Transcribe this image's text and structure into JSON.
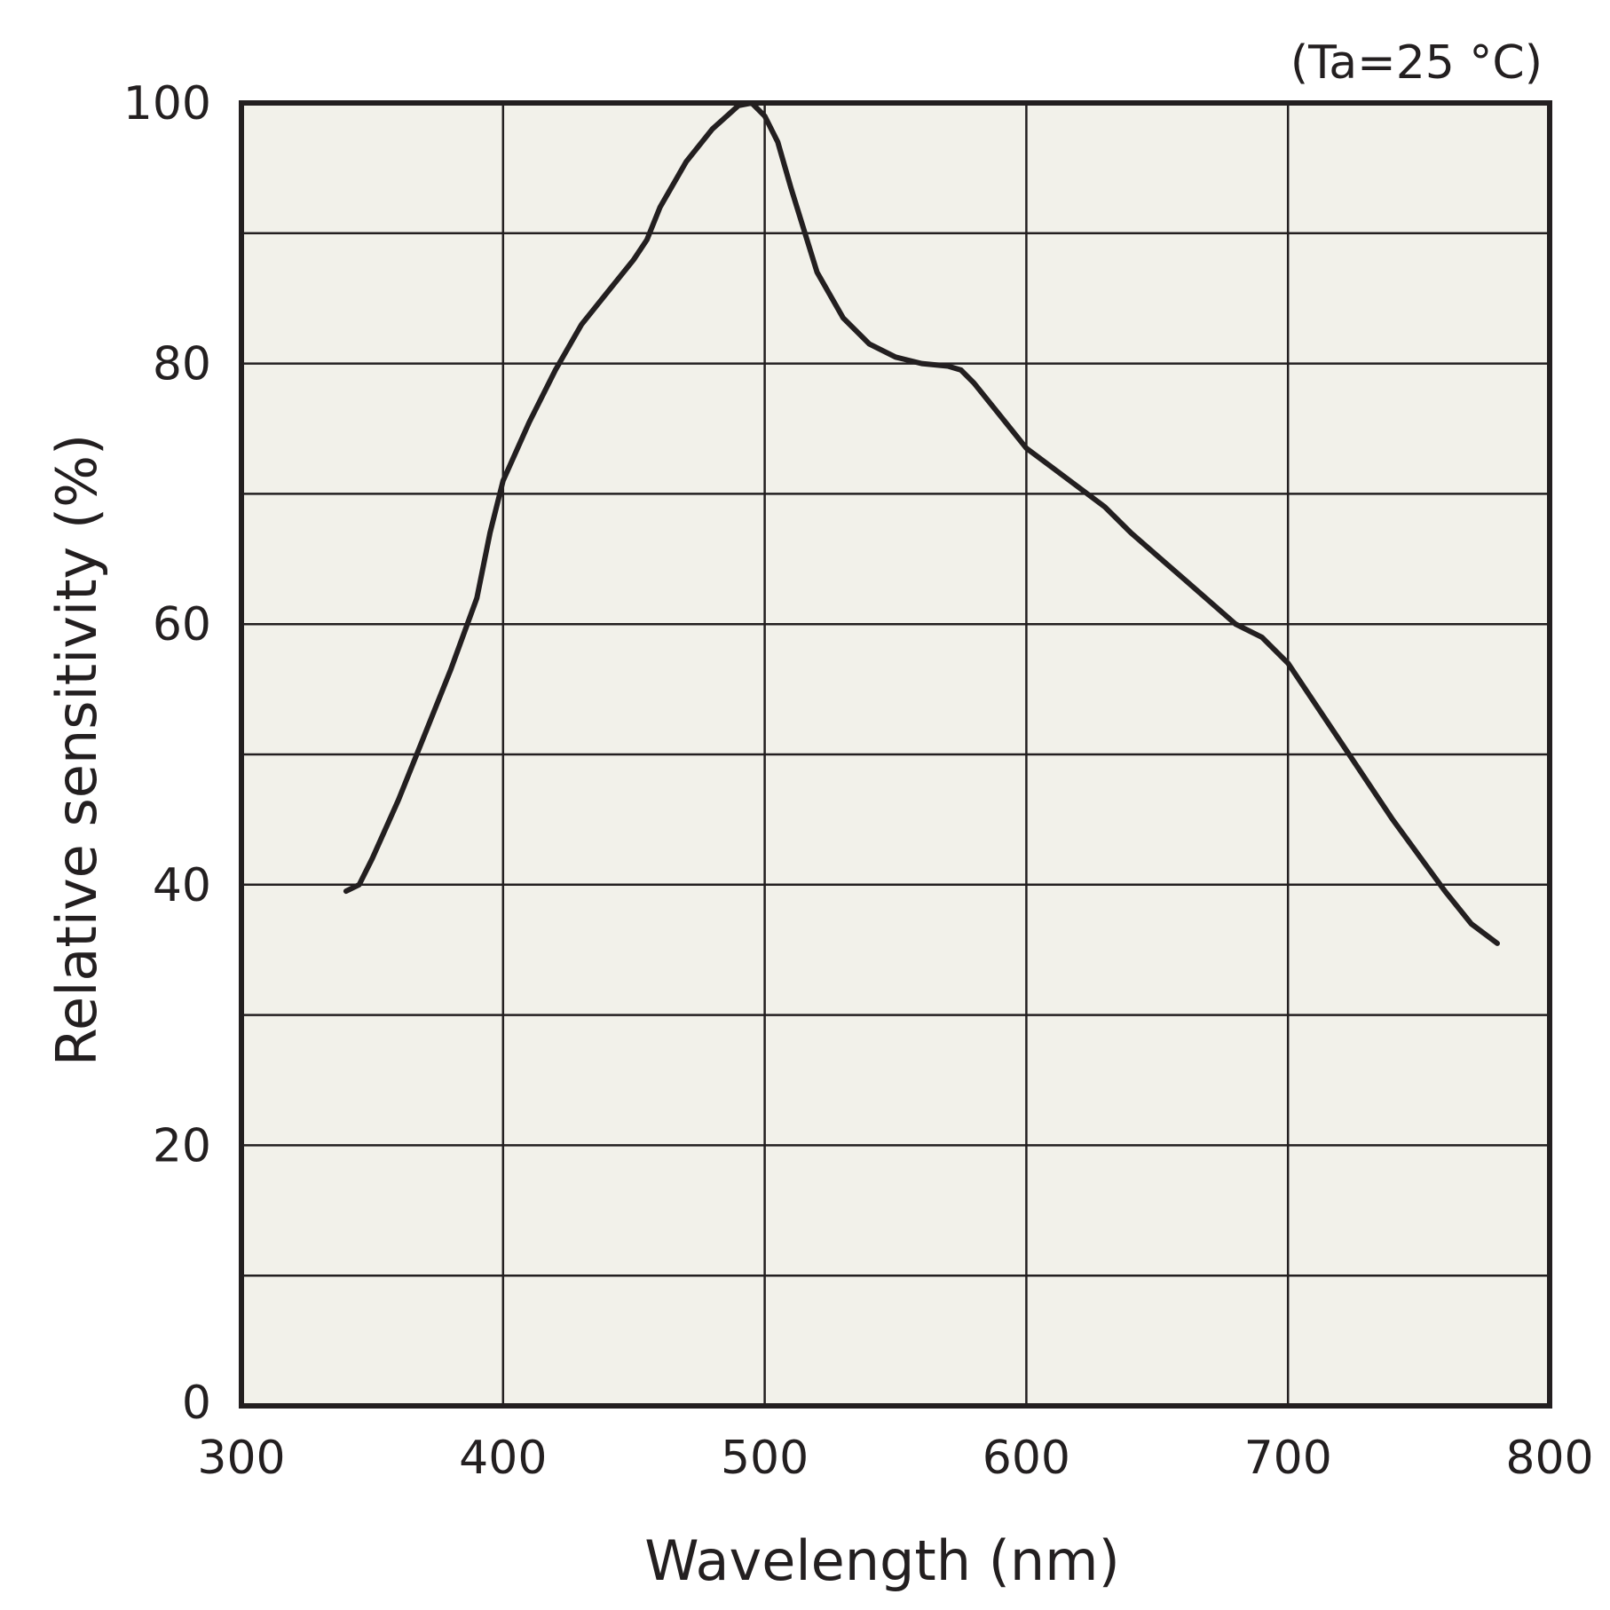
{
  "chart_data": {
    "type": "line",
    "title": "",
    "annotation": "(Ta=25 °C)",
    "xlabel": "Wavelength (nm)",
    "ylabel": "Relative sensitivity (%)",
    "xlim": [
      300,
      800
    ],
    "ylim": [
      0,
      100
    ],
    "x_ticks": [
      300,
      400,
      500,
      600,
      700,
      800
    ],
    "y_ticks": [
      0,
      20,
      40,
      60,
      80,
      100
    ],
    "x_grid": [
      300,
      400,
      500,
      600,
      700,
      800
    ],
    "y_grid": [
      0,
      10,
      20,
      30,
      40,
      50,
      60,
      70,
      80,
      90,
      100
    ],
    "grid": true,
    "colors": {
      "plot_background": "#f2f1ea",
      "line": "#231f20"
    },
    "series": [
      {
        "values": [
          [
            340,
            39.5
          ],
          [
            345,
            40
          ],
          [
            350,
            42
          ],
          [
            360,
            46.5
          ],
          [
            370,
            51.5
          ],
          [
            380,
            56.5
          ],
          [
            390,
            62
          ],
          [
            395,
            67
          ],
          [
            400,
            71
          ],
          [
            410,
            75.5
          ],
          [
            420,
            79.5
          ],
          [
            430,
            83
          ],
          [
            440,
            85.5
          ],
          [
            450,
            88
          ],
          [
            455,
            89.5
          ],
          [
            460,
            92
          ],
          [
            470,
            95.5
          ],
          [
            480,
            98
          ],
          [
            490,
            99.8
          ],
          [
            495,
            100
          ],
          [
            500,
            99
          ],
          [
            505,
            97
          ],
          [
            510,
            93.5
          ],
          [
            520,
            87
          ],
          [
            530,
            83.5
          ],
          [
            540,
            81.5
          ],
          [
            550,
            80.5
          ],
          [
            560,
            80
          ],
          [
            570,
            79.8
          ],
          [
            575,
            79.5
          ],
          [
            580,
            78.5
          ],
          [
            590,
            76
          ],
          [
            600,
            73.5
          ],
          [
            610,
            72
          ],
          [
            620,
            70.5
          ],
          [
            630,
            69
          ],
          [
            640,
            67
          ],
          [
            660,
            63.5
          ],
          [
            680,
            60
          ],
          [
            690,
            59
          ],
          [
            700,
            57
          ],
          [
            710,
            54
          ],
          [
            720,
            51
          ],
          [
            740,
            45
          ],
          [
            760,
            39.5
          ],
          [
            770,
            37
          ],
          [
            780,
            35.5
          ]
        ]
      }
    ]
  }
}
